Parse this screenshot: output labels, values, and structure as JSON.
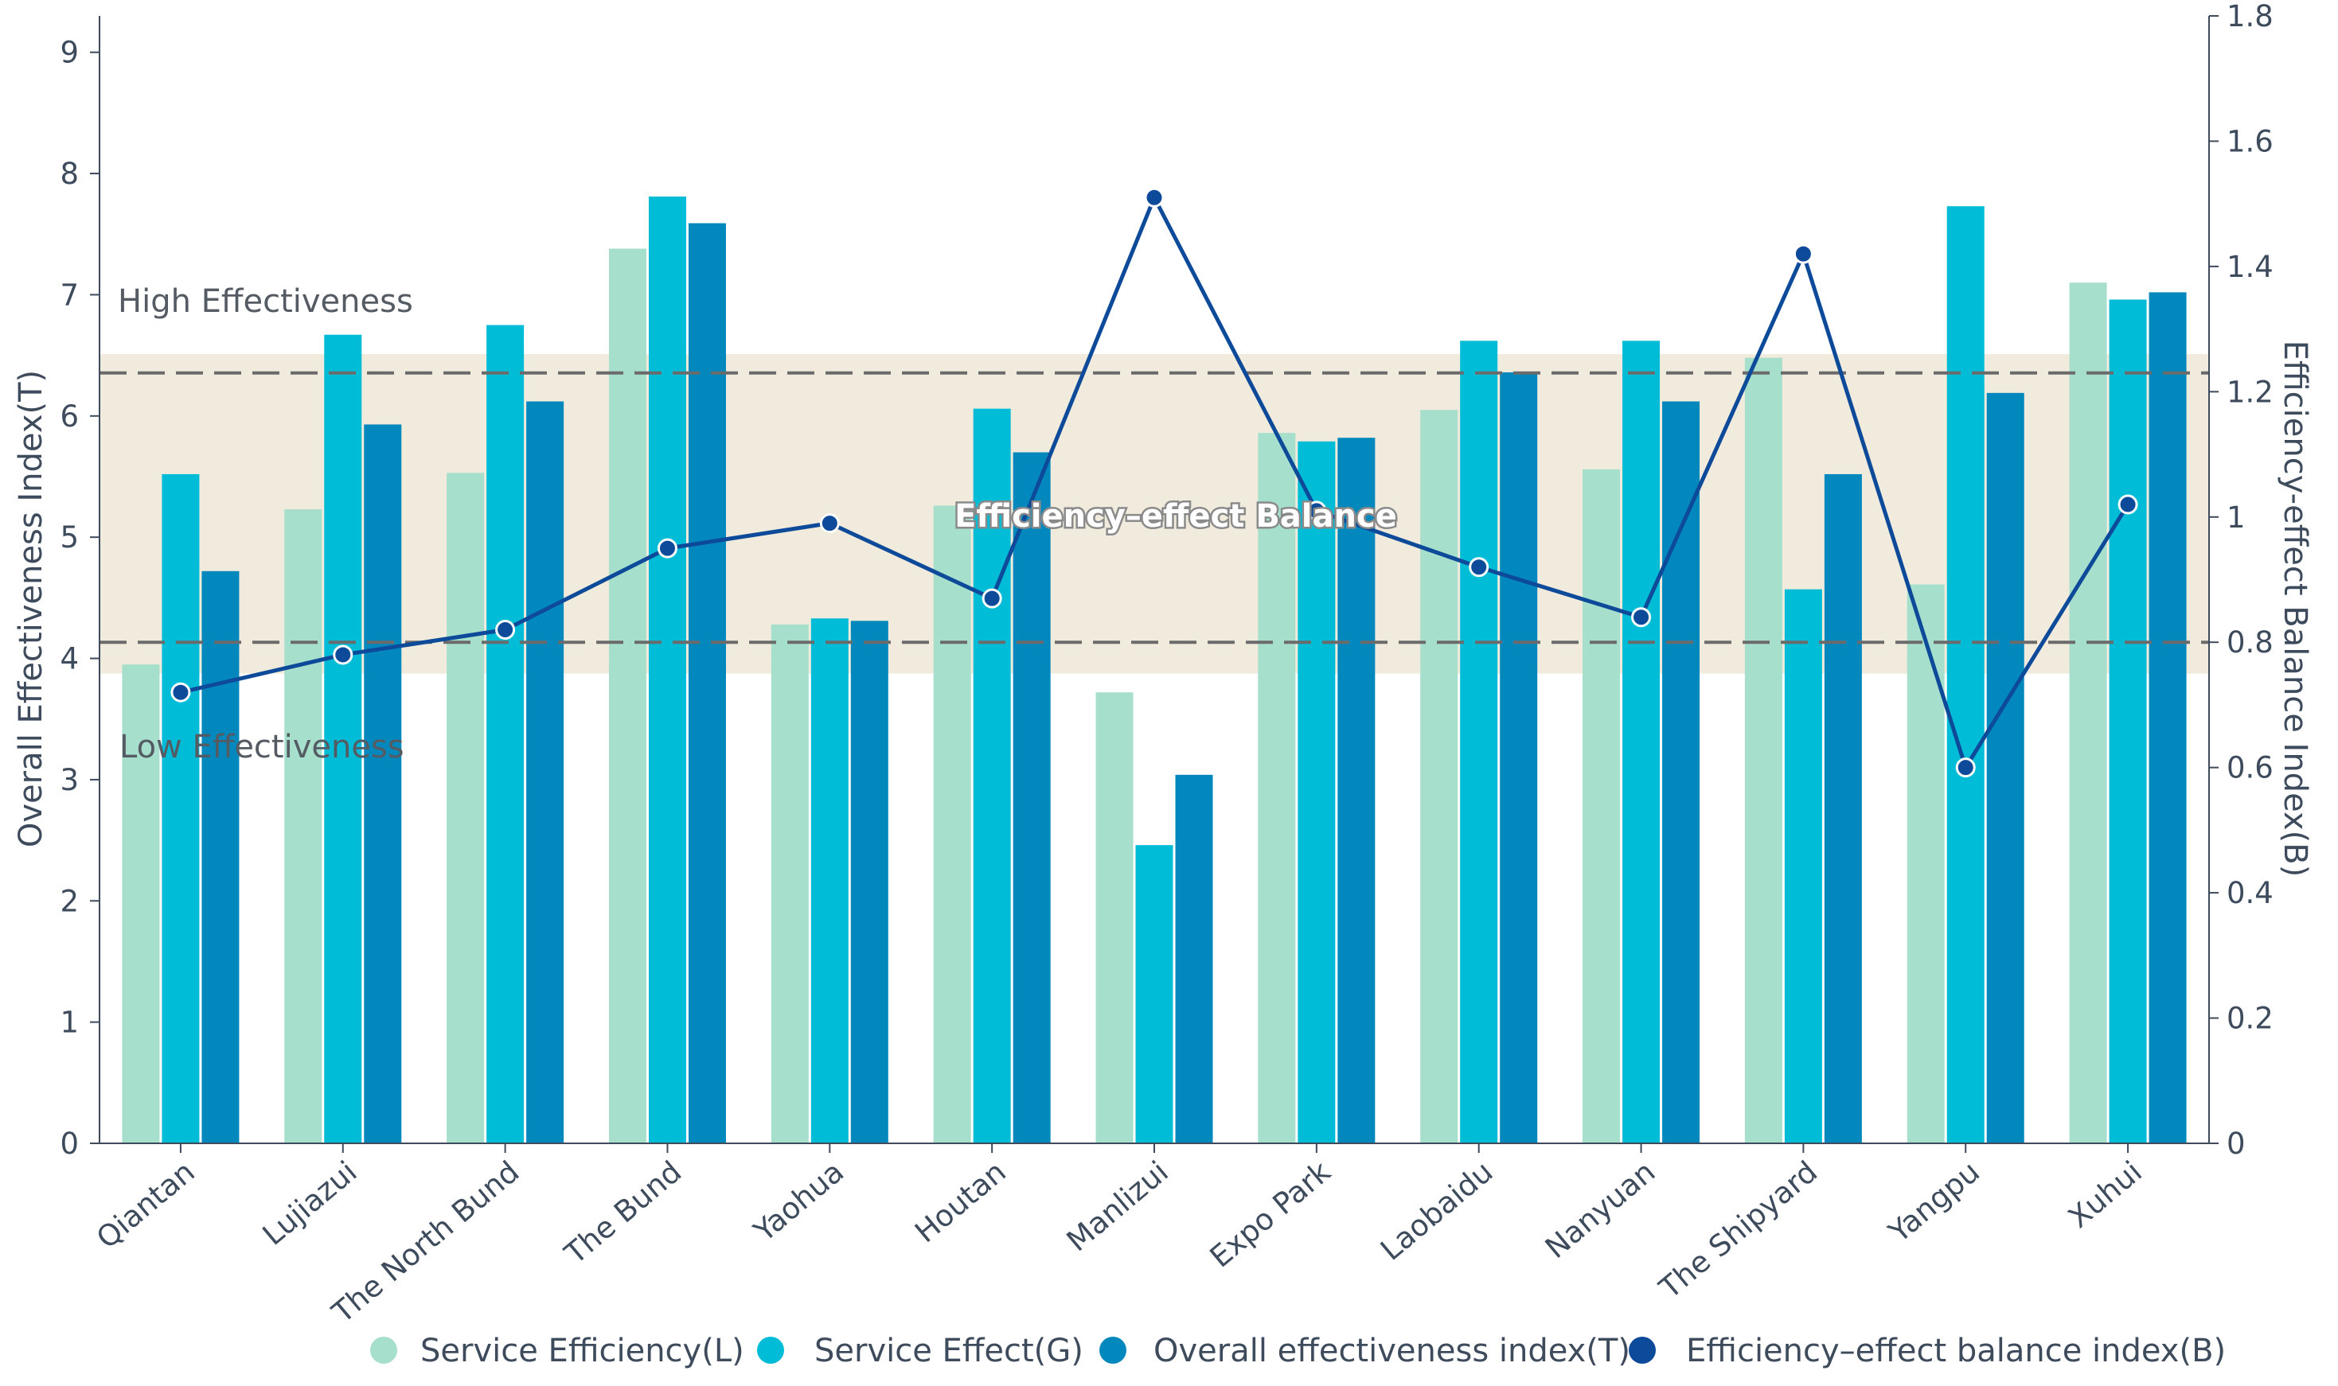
{
  "chart_data": {
    "type": "bar",
    "categories": [
      "Qiantan",
      "Lujiazui",
      "The North Bund",
      "The Bund",
      "Yaohua",
      "Houtan",
      "Manlizui",
      "Expo Park",
      "Laobaidu",
      "Nanyuan",
      "The Shipyard",
      "Yangpu",
      "Xuhui"
    ],
    "series": [
      {
        "name": "Service Efficiency(L)",
        "axis": "left",
        "kind": "bar",
        "color": "#a6dfcb",
        "values": [
          3.95,
          5.23,
          5.53,
          7.38,
          4.28,
          5.26,
          3.72,
          5.86,
          6.05,
          5.56,
          6.48,
          4.61,
          7.1
        ]
      },
      {
        "name": "Service Effect(G)",
        "axis": "left",
        "kind": "bar",
        "color": "#00bcd6",
        "values": [
          5.52,
          6.67,
          6.75,
          7.81,
          4.33,
          6.06,
          2.46,
          5.79,
          6.62,
          6.62,
          4.57,
          7.73,
          6.96
        ]
      },
      {
        "name": "Overall effectiveness index(T)",
        "axis": "left",
        "kind": "bar",
        "color": "#0388bd",
        "values": [
          4.72,
          5.93,
          6.12,
          7.59,
          4.31,
          5.7,
          3.04,
          5.82,
          6.36,
          6.12,
          5.52,
          6.19,
          7.02
        ]
      },
      {
        "name": "Efficiency–effect balance index(B)",
        "axis": "right",
        "kind": "line",
        "color": "#0d4a99",
        "values": [
          0.72,
          0.78,
          0.82,
          0.95,
          0.99,
          0.87,
          1.51,
          1.01,
          0.92,
          0.84,
          1.42,
          0.6,
          1.02
        ]
      }
    ],
    "y_left": {
      "label": "Overall Effectiveness Index(T)",
      "lim": [
        0,
        9.3
      ],
      "ticks": [
        0,
        1,
        2,
        3,
        4,
        5,
        6,
        7,
        8,
        9
      ]
    },
    "y_right": {
      "label": "Efficiency-effect Balance Index(B)",
      "lim": [
        0,
        1.8
      ],
      "ticks": [
        "0",
        "0.2",
        "0.4",
        "0.6",
        "0.8",
        "1",
        "1.2",
        "1.4",
        "1.6",
        "1.8"
      ]
    },
    "balance_band": {
      "label": "Efficiency–effect Balance",
      "range": [
        0.75,
        1.26
      ],
      "color": "#f0ebdc"
    },
    "reference_lines": [
      1.23,
      0.8
    ],
    "zone_labels": {
      "high": "High Effectiveness",
      "low": "Low Effectiveness"
    },
    "legend_position": "bottom",
    "grid": false
  }
}
